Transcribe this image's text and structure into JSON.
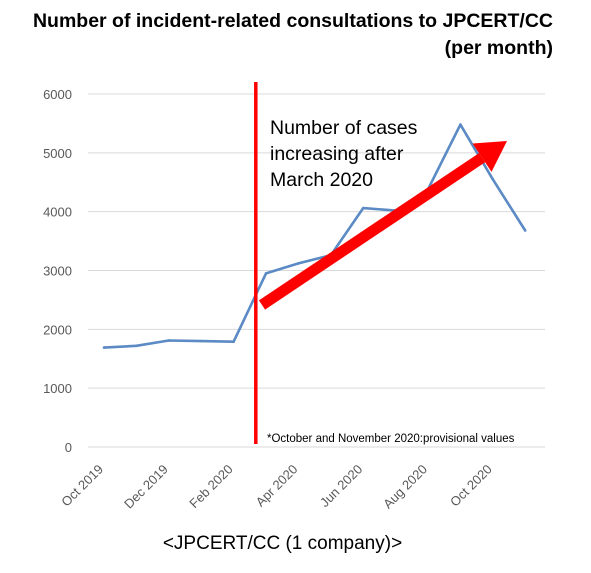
{
  "title_line1": "Number of incident-related consultations to JPCERT/CC",
  "title_line2": "(per month)",
  "annotation_lines": [
    "Number of cases",
    "increasing after",
    "March 2020"
  ],
  "footnote": "*October and November 2020:provisional values",
  "source_label": "<JPCERT/CC (1 company)>",
  "colors": {
    "line": "#5b8ac4",
    "marker_line": "#ff0000",
    "trend_arrow": "#ff0000",
    "grid": "#d9d9d9"
  },
  "chart_data": {
    "type": "line",
    "title": "Number of incident-related consultations to JPCERT/CC (per month)",
    "x": [
      "Oct 2019",
      "Nov 2019",
      "Dec 2019",
      "Jan 2020",
      "Feb 2020",
      "Mar 2020",
      "Apr 2020",
      "May 2020",
      "Jun 2020",
      "Jul 2020",
      "Aug 2020",
      "Sep 2020",
      "Oct 2020",
      "Nov 2020"
    ],
    "xtick_labels": [
      "Oct 2019",
      "Dec 2019",
      "Feb 2020",
      "Apr 2020",
      "Jun 2020",
      "Aug 2020",
      "Oct 2020"
    ],
    "series": [
      {
        "values": [
          1690,
          1720,
          1810,
          1800,
          1790,
          2950,
          3120,
          3260,
          4060,
          4020,
          4380,
          5480,
          4550,
          3680
        ]
      }
    ],
    "yticks": [
      0,
      1000,
      2000,
      3000,
      4000,
      5000,
      6000
    ],
    "ylim": [
      0,
      6000
    ],
    "grid": "horizontal",
    "vertical_marker_between": [
      "Feb 2020",
      "Mar 2020"
    ],
    "xlabel": "",
    "ylabel": ""
  }
}
